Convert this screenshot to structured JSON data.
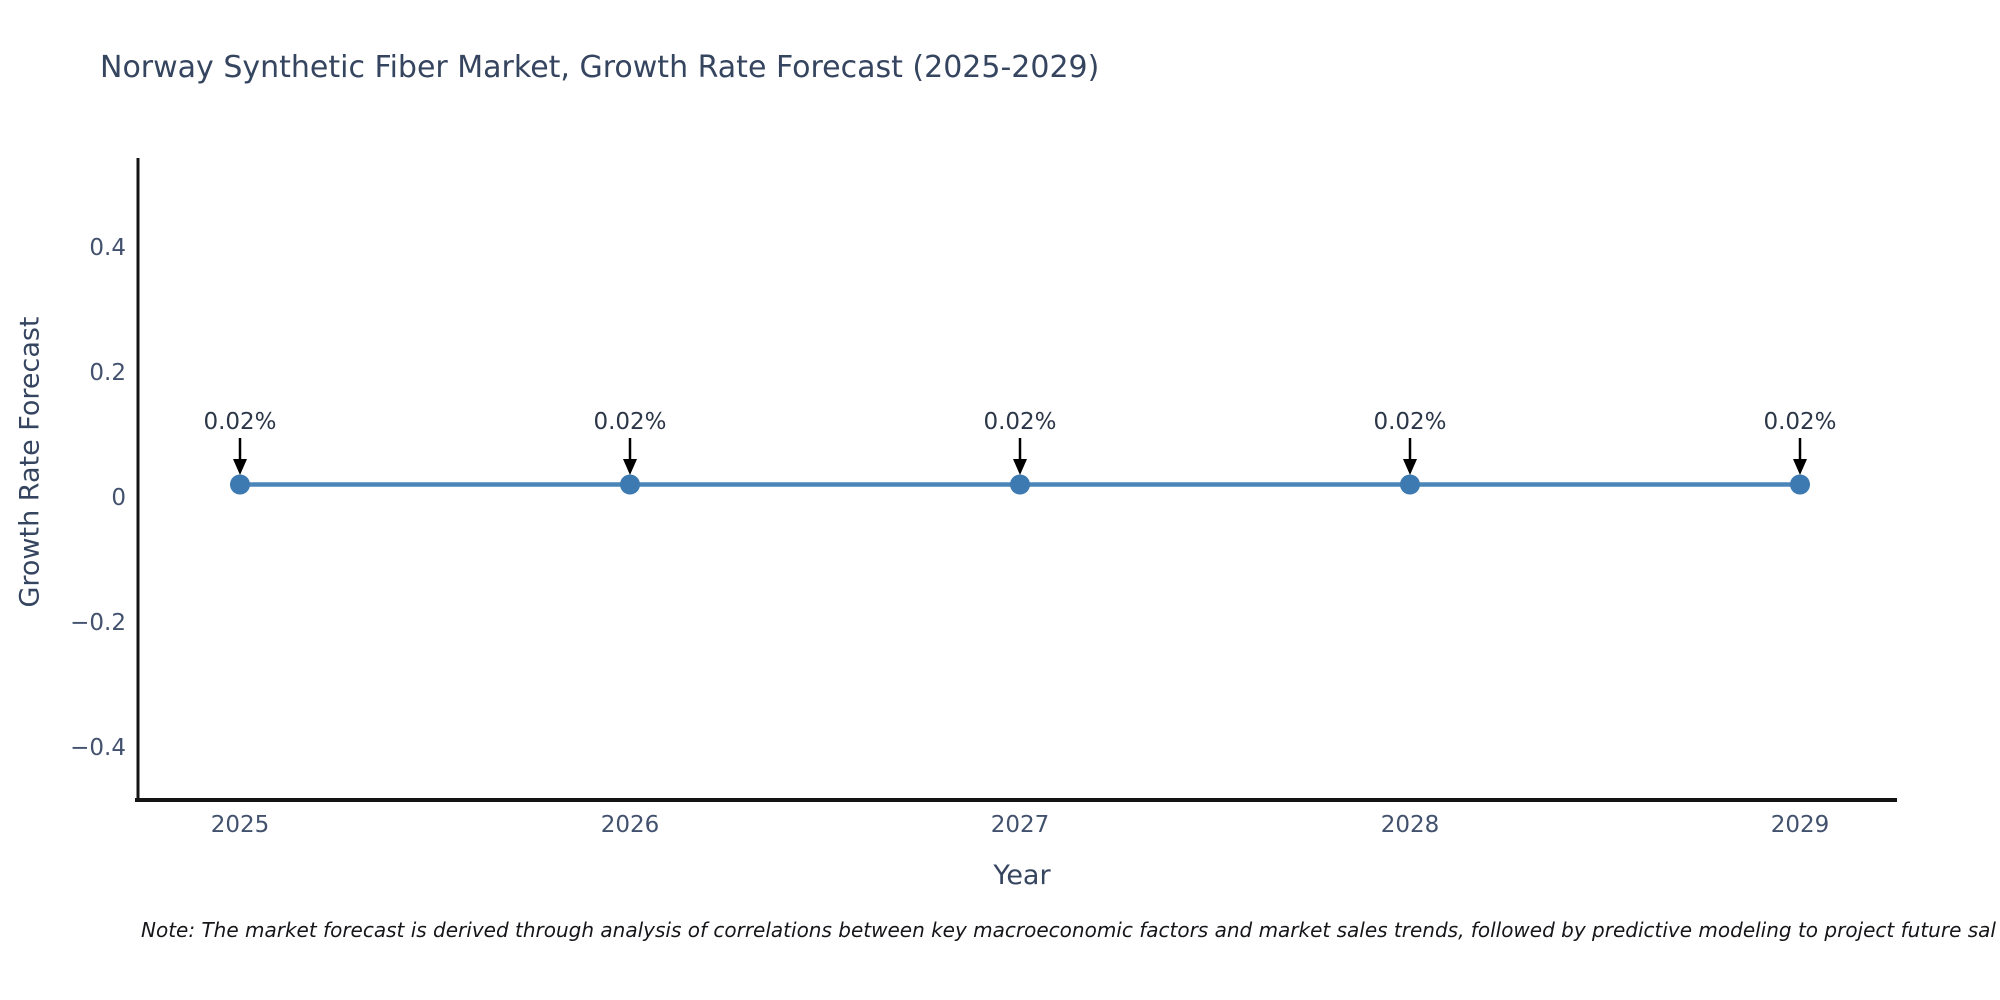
{
  "chart_data": {
    "type": "line",
    "title": "Norway Synthetic Fiber Market, Growth Rate Forecast (2025-2029)",
    "xlabel": "Year",
    "ylabel": "Growth Rate Forecast",
    "categories": [
      "2025",
      "2026",
      "2027",
      "2028",
      "2029"
    ],
    "series": [
      {
        "name": "Growth Rate Forecast",
        "values": [
          0.02,
          0.02,
          0.02,
          0.02,
          0.02
        ]
      }
    ],
    "point_labels": [
      "0.02%",
      "0.02%",
      "0.02%",
      "0.02%",
      "0.02%"
    ],
    "ytick_labels": [
      "0.4",
      "0.2",
      "0",
      "−0.2",
      "−0.4"
    ],
    "ytick_values": [
      0.4,
      0.2,
      0,
      -0.2,
      -0.4
    ],
    "ylim": [
      -0.49,
      0.54
    ],
    "grid": false,
    "legend": "none",
    "colors": {
      "line": "#4a86b8",
      "marker": "#3d7ab2",
      "arrow": "#000000",
      "axis": "#141414",
      "title_text": "#36455f",
      "tick_text": "#42516d",
      "annotation_text": "#2b3648"
    }
  },
  "note": {
    "text": "Note: The market forecast is derived through analysis of correlations between key macroeconomic factors and market sales trends, followed by predictive modeling to project future sal"
  }
}
